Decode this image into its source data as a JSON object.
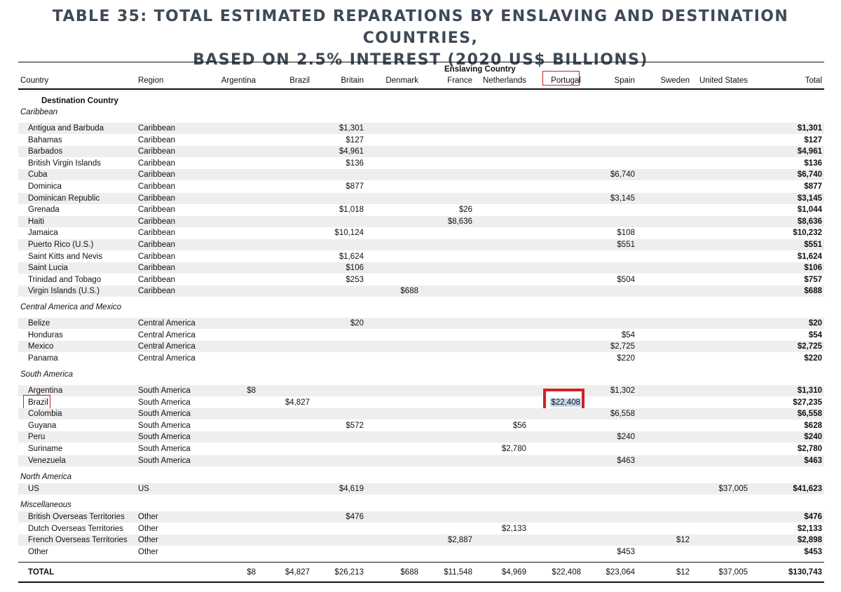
{
  "title_line1": "TABLE 35: TOTAL ESTIMATED REPARATIONS BY ENSLAVING AND DESTINATION COUNTRIES,",
  "title_line2": "BASED ON 2.5% INTEREST (2020 US$ BILLIONS)",
  "header": {
    "group_label": "Enslaving Country",
    "country": "Country",
    "region": "Region",
    "columns": [
      "Argentina",
      "Brazil",
      "Britain",
      "Denmark",
      "France",
      "Netherlands",
      "Portugal",
      "Spain",
      "Sweden",
      "United States"
    ],
    "total": "Total",
    "destination_label": "Destination Country"
  },
  "sections": [
    {
      "name": "Caribbean",
      "rows": [
        {
          "country": "Antigua and Barbuda",
          "region": "Caribbean",
          "values": {
            "Britain": "$1,301"
          },
          "total": "$1,301"
        },
        {
          "country": "Bahamas",
          "region": "Caribbean",
          "values": {
            "Britain": "$127"
          },
          "total": "$127"
        },
        {
          "country": "Barbados",
          "region": "Caribbean",
          "values": {
            "Britain": "$4,961"
          },
          "total": "$4,961"
        },
        {
          "country": "British Virgin Islands",
          "region": "Caribbean",
          "values": {
            "Britain": "$136"
          },
          "total": "$136"
        },
        {
          "country": "Cuba",
          "region": "Caribbean",
          "values": {
            "Spain": "$6,740"
          },
          "total": "$6,740"
        },
        {
          "country": "Dominica",
          "region": "Caribbean",
          "values": {
            "Britain": "$877"
          },
          "total": "$877"
        },
        {
          "country": "Dominican Republic",
          "region": "Caribbean",
          "values": {
            "Spain": "$3,145"
          },
          "total": "$3,145"
        },
        {
          "country": "Grenada",
          "region": "Caribbean",
          "values": {
            "Britain": "$1,018",
            "France": "$26"
          },
          "total": "$1,044"
        },
        {
          "country": "Haiti",
          "region": "Caribbean",
          "values": {
            "France": "$8,636"
          },
          "total": "$8,636"
        },
        {
          "country": "Jamaica",
          "region": "Caribbean",
          "values": {
            "Britain": "$10,124",
            "Spain": "$108"
          },
          "total": "$10,232"
        },
        {
          "country": "Puerto Rico (U.S.)",
          "region": "Caribbean",
          "values": {
            "Spain": "$551"
          },
          "total": "$551"
        },
        {
          "country": "Saint Kitts and Nevis",
          "region": "Caribbean",
          "values": {
            "Britain": "$1,624"
          },
          "total": "$1,624"
        },
        {
          "country": "Saint Lucia",
          "region": "Caribbean",
          "values": {
            "Britain": "$106"
          },
          "total": "$106"
        },
        {
          "country": "Trinidad and Tobago",
          "region": "Caribbean",
          "values": {
            "Britain": "$253",
            "Spain": "$504"
          },
          "total": "$757"
        },
        {
          "country": "Virgin Islands (U.S.)",
          "region": "Caribbean",
          "values": {
            "Denmark": "$688"
          },
          "total": "$688"
        }
      ]
    },
    {
      "name": "Central America and Mexico",
      "rows": [
        {
          "country": "Belize",
          "region": "Central America",
          "values": {
            "Britain": "$20"
          },
          "total": "$20"
        },
        {
          "country": "Honduras",
          "region": "Central America",
          "values": {
            "Spain": "$54"
          },
          "total": "$54"
        },
        {
          "country": "Mexico",
          "region": "Central America",
          "values": {
            "Spain": "$2,725"
          },
          "total": "$2,725"
        },
        {
          "country": "Panama",
          "region": "Central America",
          "values": {
            "Spain": "$220"
          },
          "total": "$220"
        }
      ]
    },
    {
      "name": "South America",
      "rows": [
        {
          "country": "Argentina",
          "region": "South America",
          "values": {
            "Argentina": "$8",
            "Spain": "$1,302"
          },
          "total": "$1,310"
        },
        {
          "country": "Brazil",
          "region": "South America",
          "values": {
            "Brazil": "$4,827",
            "Portugal": "$22,408"
          },
          "total": "$27,235"
        },
        {
          "country": "Colombia",
          "region": "South America",
          "values": {
            "Spain": "$6,558"
          },
          "total": "$6,558"
        },
        {
          "country": "Guyana",
          "region": "South America",
          "values": {
            "Britain": "$572",
            "Netherlands": "$56"
          },
          "total": "$628"
        },
        {
          "country": "Peru",
          "region": "South America",
          "values": {
            "Spain": "$240"
          },
          "total": "$240"
        },
        {
          "country": "Suriname",
          "region": "South America",
          "values": {
            "Netherlands": "$2,780"
          },
          "total": "$2,780"
        },
        {
          "country": "Venezuela",
          "region": "South America",
          "values": {
            "Spain": "$463"
          },
          "total": "$463"
        }
      ]
    },
    {
      "name": "North America",
      "rows": [
        {
          "country": "US",
          "region": "US",
          "values": {
            "Britain": "$4,619",
            "United States": "$37,005"
          },
          "total": "$41,623"
        }
      ]
    },
    {
      "name": "Miscellaneous",
      "rows": [
        {
          "country": "British Overseas Territories",
          "region": "Other",
          "values": {
            "Britain": "$476"
          },
          "total": "$476"
        },
        {
          "country": "Dutch Overseas Territories",
          "region": "Other",
          "values": {
            "Netherlands": "$2,133"
          },
          "total": "$2,133"
        },
        {
          "country": "French Overseas Territories",
          "region": "Other",
          "values": {
            "France": "$2,887",
            "Sweden": "$12"
          },
          "total": "$2,898"
        },
        {
          "country": "Other",
          "region": "Other",
          "values": {
            "Spain": "$453"
          },
          "total": "$453"
        }
      ]
    }
  ],
  "total_row": {
    "label": "TOTAL",
    "values": {
      "Argentina": "$8",
      "Brazil": "$4,827",
      "Britain": "$26,213",
      "Denmark": "$688",
      "France": "$11,548",
      "Netherlands": "$4,969",
      "Portugal": "$22,408",
      "Spain": "$23,064",
      "Sweden": "$12",
      "United States": "$37,005"
    },
    "total": "$130,743"
  },
  "highlights": {
    "color": "#d42020",
    "selection_color": "#c7d9ee",
    "header_column": "Portugal",
    "row_country": "Brazil",
    "cell": {
      "country": "Brazil",
      "column": "Portugal"
    }
  },
  "colors": {
    "title": "#3f4a57",
    "row_shade": "#eeeeee",
    "rule": "#111111"
  }
}
